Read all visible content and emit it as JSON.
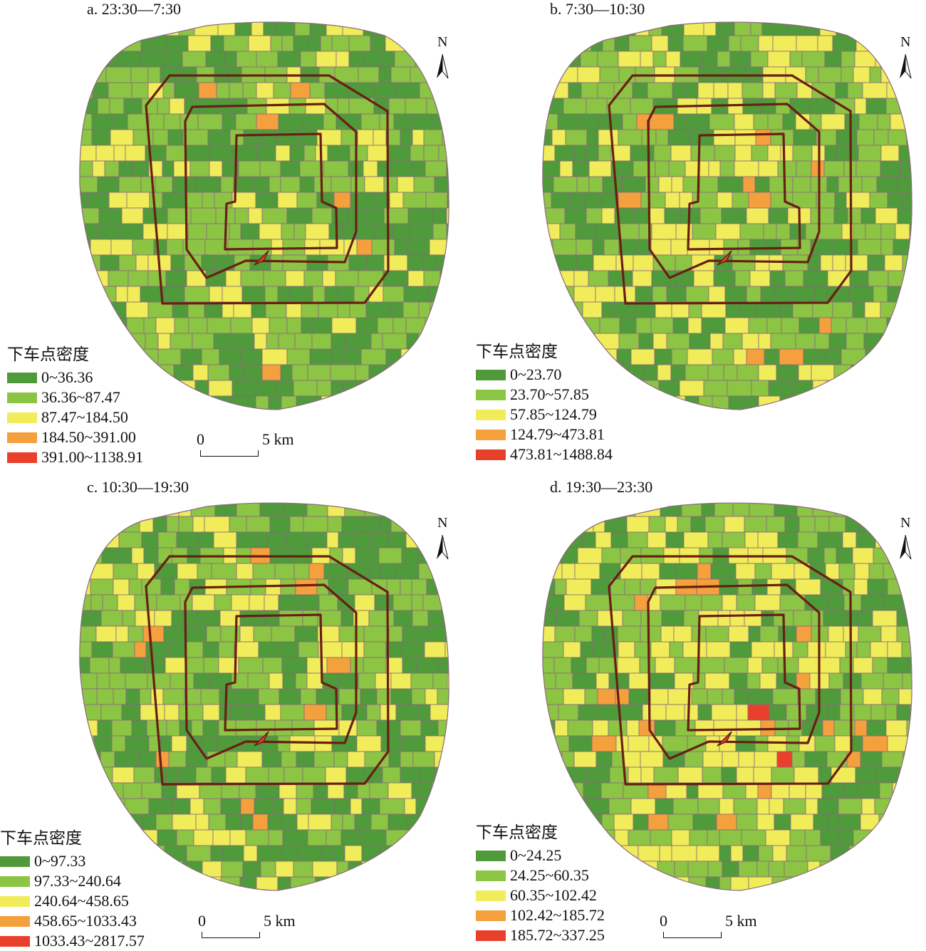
{
  "panels": [
    {
      "title": "a. 23:30—7:30",
      "legend_title": "下车点密度",
      "classes": [
        "0~36.36",
        "36.36~87.47",
        "87.47~184.50",
        "184.50~391.00",
        "391.00~1138.91"
      ],
      "scale": {
        "start": "0",
        "end": "5 km"
      },
      "north": "N",
      "class_weights": [
        0.42,
        0.36,
        0.17,
        0.04,
        0.01
      ]
    },
    {
      "title": "b. 7:30—10:30",
      "legend_title": "下车点密度",
      "classes": [
        "0~23.70",
        "23.70~57.85",
        "57.85~124.79",
        "124.79~473.81",
        "473.81~1488.84"
      ],
      "scale": null,
      "north": "N",
      "class_weights": [
        0.34,
        0.33,
        0.24,
        0.08,
        0.01
      ]
    },
    {
      "title": "c. 10:30—19:30",
      "legend_title": "下车点密度",
      "classes": [
        "0~97.33",
        "97.33~240.64",
        "240.64~458.65",
        "458.65~1033.43",
        "1033.43~2817.57"
      ],
      "scale": {
        "start": "0",
        "end": "5 km"
      },
      "north": "N",
      "class_weights": [
        0.38,
        0.35,
        0.2,
        0.06,
        0.01
      ]
    },
    {
      "title": "d. 19:30—23:30",
      "legend_title": "下车点密度",
      "classes": [
        "0~24.25",
        "24.25~60.35",
        "60.35~102.42",
        "102.42~185.72",
        "185.72~337.25"
      ],
      "scale": {
        "start": "0",
        "end": "5 km"
      },
      "north": "N",
      "class_weights": [
        0.3,
        0.3,
        0.25,
        0.12,
        0.03
      ]
    }
  ],
  "colors": {
    "class_colors": [
      "#4f9a3a",
      "#8cc444",
      "#f0ec5a",
      "#f4a03c",
      "#e8402a"
    ],
    "boundary": "#8a6a7a",
    "ring_road": "#6a1e14",
    "background": "#ffffff"
  }
}
